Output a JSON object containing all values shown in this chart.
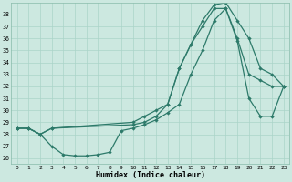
{
  "xlabel": "Humidex (Indice chaleur)",
  "bg_color": "#cce8e0",
  "grid_color": "#aad4c8",
  "line_color": "#2d7a6a",
  "xlim": [
    -0.5,
    23.5
  ],
  "ylim": [
    25.5,
    39.0
  ],
  "yticks": [
    26,
    27,
    28,
    29,
    30,
    31,
    32,
    33,
    34,
    35,
    36,
    37,
    38
  ],
  "xticks": [
    0,
    1,
    2,
    3,
    4,
    5,
    6,
    7,
    8,
    9,
    10,
    11,
    12,
    13,
    14,
    15,
    16,
    17,
    18,
    19,
    20,
    21,
    22,
    23
  ],
  "line1_min": {
    "x": [
      0,
      1,
      2,
      3,
      4,
      5,
      6,
      7,
      8,
      9,
      10,
      11,
      12,
      13,
      14,
      15,
      16,
      17,
      18,
      19,
      20,
      21,
      22,
      23
    ],
    "y": [
      28.5,
      28.5,
      28.0,
      27.0,
      26.3,
      26.2,
      26.2,
      26.3,
      26.5,
      28.3,
      28.5,
      28.8,
      29.2,
      29.8,
      30.5,
      33.0,
      35.0,
      37.5,
      38.5,
      36.0,
      33.0,
      32.5,
      32.0,
      32.0
    ]
  },
  "line2_max": {
    "x": [
      0,
      1,
      2,
      3,
      10,
      11,
      12,
      13,
      14,
      15,
      16,
      17,
      18,
      19,
      20,
      21,
      22,
      23
    ],
    "y": [
      28.5,
      28.5,
      28.0,
      28.5,
      29.0,
      29.5,
      30.0,
      30.5,
      33.5,
      35.5,
      37.5,
      38.8,
      39.0,
      37.5,
      36.0,
      33.5,
      33.0,
      32.0
    ]
  },
  "line3_mean": {
    "x": [
      0,
      1,
      2,
      3,
      10,
      11,
      12,
      13,
      14,
      15,
      16,
      17,
      18,
      19,
      20,
      21,
      22,
      23
    ],
    "y": [
      28.5,
      28.5,
      28.0,
      28.5,
      28.8,
      29.0,
      29.5,
      30.5,
      33.5,
      35.5,
      37.0,
      38.5,
      38.5,
      35.8,
      31.0,
      29.5,
      29.5,
      32.0
    ]
  }
}
